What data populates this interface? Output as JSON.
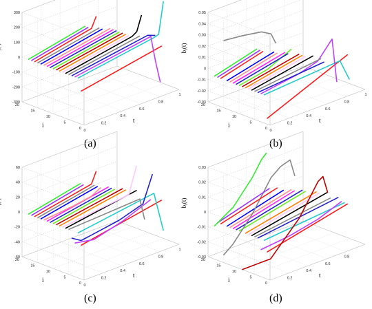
{
  "colors": [
    "#ff1a1a",
    "#22cccc",
    "#c040ff",
    "#2222cc",
    "#888888",
    "#000000",
    "#ffc8ff",
    "#ff8000",
    "#c00000",
    "#66ee22",
    "#2222cc",
    "#ff22ff",
    "#ff8f8f",
    "#0000ff",
    "#888888",
    "#ff2020",
    "#9933ff",
    "#33ee33"
  ],
  "chart_data": [
    {
      "panel": "(a)",
      "type": "line",
      "ylabel": "a_i(t)",
      "ylabel_main": "a",
      "ylabel_sub": "i",
      "ylabel_suffix": "(t)",
      "xlabel": "t",
      "ilabel": "i",
      "zlim": [
        -300,
        300
      ],
      "zticks": [
        "300",
        "200",
        "100",
        "0",
        "-100",
        "-200",
        "-300"
      ],
      "iticks": [
        "20",
        "15",
        "10",
        "5",
        "0"
      ],
      "tticks": [
        "0",
        "0.2",
        "0.4",
        "0.6",
        "0.8",
        "1"
      ],
      "series": [
        {
          "i": 1,
          "t": [
            0,
            0.85
          ],
          "v": [
            -80,
            20
          ]
        },
        {
          "i": 2,
          "t": [
            0,
            0.8,
            0.85,
            0.9
          ],
          "v": [
            0,
            80,
            90,
            300
          ]
        },
        {
          "i": 3,
          "t": [
            0,
            0.8,
            0.85,
            0.9
          ],
          "v": [
            0,
            80,
            -100,
            -250
          ]
        },
        {
          "i": 4,
          "t": [
            0,
            0.8,
            0.88
          ],
          "v": [
            0,
            80,
            60
          ]
        },
        {
          "i": 5,
          "t": [
            0,
            0.75
          ],
          "v": [
            0,
            80
          ]
        },
        {
          "i": 6,
          "t": [
            0,
            0.7,
            0.75,
            0.8
          ],
          "v": [
            0,
            80,
            100,
            200
          ]
        },
        {
          "i": 7,
          "t": [
            0,
            0.7
          ],
          "v": [
            0,
            80
          ]
        },
        {
          "i": 8,
          "t": [
            0,
            0.7
          ],
          "v": [
            0,
            80
          ]
        },
        {
          "i": 9,
          "t": [
            0,
            0.7
          ],
          "v": [
            0,
            80
          ]
        },
        {
          "i": 10,
          "t": [
            0,
            0.7
          ],
          "v": [
            0,
            80
          ]
        },
        {
          "i": 11,
          "t": [
            0,
            0.7
          ],
          "v": [
            0,
            80
          ]
        },
        {
          "i": 12,
          "t": [
            0,
            0.7
          ],
          "v": [
            0,
            80
          ]
        },
        {
          "i": 13,
          "t": [
            0,
            0.7
          ],
          "v": [
            0,
            80
          ]
        },
        {
          "i": 14,
          "t": [
            0,
            0.65
          ],
          "v": [
            0,
            80
          ]
        },
        {
          "i": 15,
          "t": [
            0,
            0.65
          ],
          "v": [
            0,
            80
          ]
        },
        {
          "i": 16,
          "t": [
            0,
            0.6,
            0.65
          ],
          "v": [
            0,
            80,
            150
          ]
        },
        {
          "i": 17,
          "t": [
            0,
            0.6
          ],
          "v": [
            0,
            80
          ]
        },
        {
          "i": 18,
          "t": [
            0,
            0.6
          ],
          "v": [
            0,
            80
          ]
        }
      ]
    },
    {
      "panel": "(b)",
      "type": "line",
      "ylabel": "b_i(t)",
      "ylabel_main": "b",
      "ylabel_sub": "i",
      "ylabel_suffix": "(t)",
      "xlabel": "t",
      "ilabel": "i",
      "zlim": [
        -0.03,
        0.05
      ],
      "zticks": [
        "0.05",
        "0.04",
        "0.03",
        "0.02",
        "0.01",
        "0",
        "-0.01",
        "-0.02",
        "-0.03"
      ],
      "iticks": [
        "20",
        "15",
        "10",
        "5",
        "0"
      ],
      "tticks": [
        "0",
        "0.2",
        "0.4",
        "0.6",
        "0.8",
        "1"
      ],
      "series": [
        {
          "i": 1,
          "t": [
            0,
            0.85
          ],
          "v": [
            -0.025,
            0.005
          ]
        },
        {
          "i": 2,
          "t": [
            0,
            0.8,
            0.9
          ],
          "v": [
            -0.005,
            0.0,
            -0.02
          ]
        },
        {
          "i": 3,
          "t": [
            0,
            0.4,
            0.6,
            0.7,
            0.75,
            0.8
          ],
          "v": [
            -0.005,
            0.0,
            0.005,
            0.015,
            0.02,
            -0.02
          ]
        },
        {
          "i": 4,
          "t": [
            0,
            0.7
          ],
          "v": [
            -0.005,
            0.0
          ]
        },
        {
          "i": 5,
          "t": [
            0,
            0.7
          ],
          "v": [
            -0.005,
            0.002
          ]
        },
        {
          "i": 6,
          "t": [
            0,
            0.65
          ],
          "v": [
            -0.005,
            0.005
          ]
        },
        {
          "i": 7,
          "t": [
            0,
            0.6
          ],
          "v": [
            -0.005,
            0.005
          ]
        },
        {
          "i": 8,
          "t": [
            0,
            0.6
          ],
          "v": [
            -0.005,
            0.005
          ]
        },
        {
          "i": 9,
          "t": [
            0,
            0.6
          ],
          "v": [
            -0.005,
            0.005
          ]
        },
        {
          "i": 10,
          "t": [
            0,
            0.3,
            0.55
          ],
          "v": [
            -0.005,
            0.0,
            0.01
          ]
        },
        {
          "i": 11,
          "t": [
            0,
            0.55
          ],
          "v": [
            -0.005,
            0.005
          ]
        },
        {
          "i": 12,
          "t": [
            0,
            0.55
          ],
          "v": [
            -0.005,
            0.005
          ]
        },
        {
          "i": 13,
          "t": [
            0,
            0.5
          ],
          "v": [
            -0.005,
            0.005
          ]
        },
        {
          "i": 14,
          "t": [
            0,
            0.5
          ],
          "v": [
            -0.005,
            0.005
          ]
        },
        {
          "i": 15,
          "t": [
            0,
            0.2,
            0.4,
            0.5,
            0.55
          ],
          "v": [
            0.03,
            0.028,
            0.025,
            0.02,
            0.01
          ]
        },
        {
          "i": 16,
          "t": [
            0,
            0.45
          ],
          "v": [
            -0.005,
            0.005
          ]
        },
        {
          "i": 17,
          "t": [
            0,
            0.45
          ],
          "v": [
            -0.005,
            0.005
          ]
        },
        {
          "i": 18,
          "t": [
            0,
            0.45
          ],
          "v": [
            -0.005,
            0.005
          ]
        }
      ]
    },
    {
      "panel": "(c)",
      "type": "line",
      "ylabel": "a_i(t)",
      "ylabel_main": "a",
      "ylabel_sub": "i",
      "ylabel_suffix": "(t)",
      "xlabel": "t",
      "ilabel": "i",
      "zlim": [
        -60,
        60
      ],
      "zticks": [
        "60",
        "40",
        "20",
        "0",
        "-20",
        "-40",
        "-60"
      ],
      "iticks": [
        "20",
        "15",
        "10",
        "5",
        "0"
      ],
      "tticks": [
        "0",
        "0.2",
        "0.4",
        "0.6",
        "0.8",
        "1"
      ],
      "series": [
        {
          "i": 1,
          "t": [
            0,
            0.85
          ],
          "v": [
            -15,
            5
          ]
        },
        {
          "i": 2,
          "t": [
            0,
            0.8,
            0.9
          ],
          "v": [
            0,
            15,
            -40
          ]
        },
        {
          "i": 3,
          "t": [
            0,
            0.2,
            0.5,
            0.8
          ],
          "v": [
            -15,
            -20,
            -10,
            5
          ]
        },
        {
          "i": 4,
          "t": [
            0,
            0.1,
            0.3,
            0.5,
            0.75,
            0.85
          ],
          "v": [
            -10,
            -18,
            -14,
            -10,
            0,
            35
          ]
        },
        {
          "i": 5,
          "t": [
            0,
            0.75,
            0.8
          ],
          "v": [
            0,
            5,
            -25
          ]
        },
        {
          "i": 6,
          "t": [
            0,
            0.75
          ],
          "v": [
            0,
            15
          ]
        },
        {
          "i": 7,
          "t": [
            0,
            0.7,
            0.78
          ],
          "v": [
            0,
            10,
            45
          ]
        },
        {
          "i": 8,
          "t": [
            0,
            0.7
          ],
          "v": [
            0,
            15
          ]
        },
        {
          "i": 9,
          "t": [
            0,
            0.7
          ],
          "v": [
            0,
            15
          ]
        },
        {
          "i": 10,
          "t": [
            0,
            0.65
          ],
          "v": [
            0,
            15
          ]
        },
        {
          "i": 11,
          "t": [
            0,
            0.65
          ],
          "v": [
            0,
            15
          ]
        },
        {
          "i": 12,
          "t": [
            0,
            0.65
          ],
          "v": [
            0,
            15
          ]
        },
        {
          "i": 13,
          "t": [
            0,
            0.3,
            0.5,
            0.6
          ],
          "v": [
            0,
            4,
            8,
            15
          ]
        },
        {
          "i": 14,
          "t": [
            0,
            0.6
          ],
          "v": [
            0,
            15
          ]
        },
        {
          "i": 15,
          "t": [
            0,
            0.6
          ],
          "v": [
            0,
            15
          ]
        },
        {
          "i": 16,
          "t": [
            0,
            0.6,
            0.65
          ],
          "v": [
            0,
            15,
            30
          ]
        },
        {
          "i": 17,
          "t": [
            0,
            0.55
          ],
          "v": [
            0,
            15
          ]
        },
        {
          "i": 18,
          "t": [
            0,
            0.55
          ],
          "v": [
            0,
            15
          ]
        }
      ]
    },
    {
      "panel": "(d)",
      "type": "line",
      "ylabel": "b_i(t)",
      "ylabel_main": "b",
      "ylabel_sub": "i",
      "ylabel_suffix": "(t)",
      "xlabel": "t",
      "ilabel": "i",
      "zlim": [
        -0.03,
        0.03
      ],
      "zticks": [
        "0.03",
        "0.02",
        "0.01",
        "0",
        "-0.01",
        "-0.02",
        "-0.03"
      ],
      "iticks": [
        "20",
        "15",
        "10",
        "5",
        "0"
      ],
      "tticks": [
        "0.2",
        "0.4",
        "0.6",
        "0.8"
      ],
      "series": [
        {
          "i": 1,
          "t": [
            0,
            0.85
          ],
          "v": [
            -0.012,
            0.0
          ]
        },
        {
          "i": 2,
          "t": [
            0,
            0.85
          ],
          "v": [
            -0.005,
            0.0
          ]
        },
        {
          "i": 3,
          "t": [
            0,
            0.3,
            0.6,
            0.85
          ],
          "v": [
            -0.012,
            -0.01,
            -0.006,
            0.0
          ]
        },
        {
          "i": 4,
          "t": [
            0,
            0.85
          ],
          "v": [
            -0.005,
            0.002
          ]
        },
        {
          "i": 5,
          "t": [
            0,
            0.8
          ],
          "v": [
            -0.005,
            0.002
          ]
        },
        {
          "i": 6,
          "t": [
            0,
            0.8
          ],
          "v": [
            -0.005,
            0.005
          ]
        },
        {
          "i": 7,
          "t": [
            0,
            0.75
          ],
          "v": [
            -0.005,
            0.005
          ]
        },
        {
          "i": 8,
          "t": [
            0,
            0.75
          ],
          "v": [
            -0.005,
            0.005
          ]
        },
        {
          "i": 9,
          "t": [
            0,
            0.3,
            0.45,
            0.6,
            0.7,
            0.8,
            0.85,
            0.9
          ],
          "v": [
            -0.03,
            -0.03,
            -0.02,
            -0.01,
            0.0,
            0.01,
            0.012,
            0.0
          ]
        },
        {
          "i": 10,
          "t": [
            0,
            0.7
          ],
          "v": [
            -0.005,
            0.005
          ]
        },
        {
          "i": 11,
          "t": [
            0,
            0.7
          ],
          "v": [
            -0.005,
            0.005
          ]
        },
        {
          "i": 12,
          "t": [
            0,
            0.65
          ],
          "v": [
            -0.005,
            0.005
          ]
        },
        {
          "i": 13,
          "t": [
            0,
            0.65
          ],
          "v": [
            -0.005,
            0.005
          ]
        },
        {
          "i": 14,
          "t": [
            0,
            0.6
          ],
          "v": [
            -0.005,
            0.005
          ]
        },
        {
          "i": 15,
          "t": [
            0,
            0.1,
            0.3,
            0.5,
            0.6,
            0.7,
            0.75
          ],
          "v": [
            -0.025,
            -0.02,
            -0.005,
            0.015,
            0.02,
            0.022,
            0.01
          ]
        },
        {
          "i": 16,
          "t": [
            0,
            0.6
          ],
          "v": [
            -0.005,
            0.005
          ]
        },
        {
          "i": 17,
          "t": [
            0,
            0.55
          ],
          "v": [
            -0.005,
            0.005
          ]
        },
        {
          "i": 18,
          "t": [
            0,
            0.2,
            0.4,
            0.5,
            0.55
          ],
          "v": [
            -0.008,
            0.0,
            0.015,
            0.025,
            0.028
          ]
        }
      ]
    }
  ]
}
